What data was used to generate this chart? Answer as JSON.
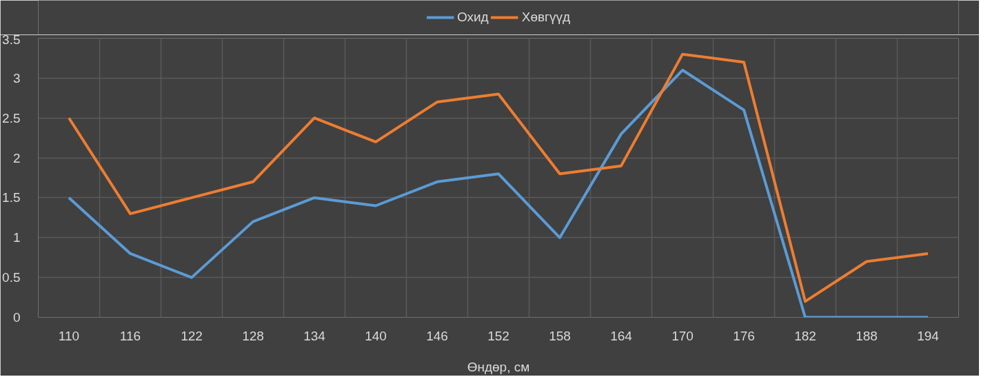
{
  "chart_data": {
    "type": "line",
    "xlabel": "Өндөр, см",
    "categories": [
      "110",
      "116",
      "122",
      "128",
      "134",
      "140",
      "146",
      "152",
      "158",
      "164",
      "170",
      "176",
      "182",
      "188",
      "194"
    ],
    "series": [
      {
        "name": "Охид",
        "color": "#5b9bd5",
        "values": [
          1.5,
          0.8,
          0.5,
          1.2,
          1.5,
          1.4,
          1.7,
          1.8,
          1.0,
          2.3,
          3.1,
          2.6,
          0,
          0,
          0
        ]
      },
      {
        "name": "Хөвгүүд",
        "color": "#ed7d31",
        "values": [
          2.5,
          1.3,
          1.5,
          1.7,
          2.5,
          2.2,
          2.7,
          2.8,
          1.8,
          1.9,
          3.3,
          3.2,
          0.2,
          0.7,
          0.8
        ]
      }
    ],
    "ylim": [
      0,
      3.5
    ],
    "yticks": [
      0,
      0.5,
      1,
      1.5,
      2,
      2.5,
      3,
      3.5
    ],
    "grid": true,
    "legend": "top",
    "marker": "none",
    "line_style": "solid"
  }
}
